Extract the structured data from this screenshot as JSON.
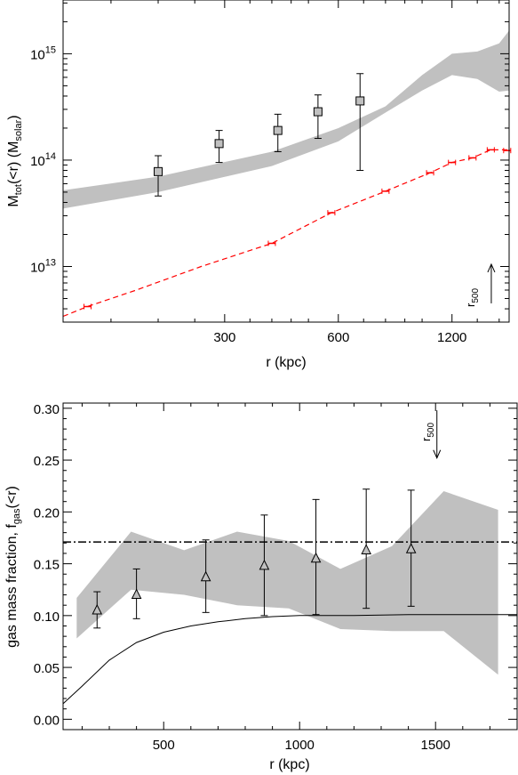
{
  "chart_data": [
    {
      "type": "scatter",
      "title": "",
      "xlabel": "r (kpc)",
      "ylabel_main": "M",
      "ylabel_sub": "tot",
      "ylabel_rest": "(<r) (M",
      "ylabel_sub2": "solar",
      "ylabel_close": ")",
      "xscale": "log",
      "yscale": "log",
      "xlim": [
        112,
        1700
      ],
      "ylim": [
        3000000000000.0,
        3200000000000000.0
      ],
      "xticks": [
        {
          "value": 300,
          "label": "300"
        },
        {
          "value": 600,
          "label": "600"
        },
        {
          "value": 1200,
          "label": "1200"
        }
      ],
      "yticks": [
        {
          "value": 10000000000000.0,
          "base": "10",
          "exp": "13"
        },
        {
          "value": 100000000000000.0,
          "base": "10",
          "exp": "14"
        },
        {
          "value": 1000000000000000.0,
          "base": "10",
          "exp": "15"
        }
      ],
      "band_color": "#c0c0c0",
      "band": {
        "x": [
          112,
          200,
          400,
          600,
          800,
          1000,
          1200,
          1400,
          1600,
          1700
        ],
        "upper": [
          52000000000000.0,
          70000000000000.0,
          120000000000000.0,
          200000000000000.0,
          320000000000000.0,
          630000000000000.0,
          1000000000000000.0,
          1050000000000000.0,
          1250000000000000.0,
          1650000000000000.0
        ],
        "lower": [
          35000000000000.0,
          50000000000000.0,
          88000000000000.0,
          150000000000000.0,
          280000000000000.0,
          450000000000000.0,
          630000000000000.0,
          580000000000000.0,
          440000000000000.0,
          450000000000000.0
        ]
      },
      "data_points": {
        "marker": "square",
        "x": [
          200,
          290,
          415,
          530,
          685
        ],
        "y": [
          78000000000000.0,
          143000000000000.0,
          190000000000000.0,
          285000000000000.0,
          360000000000000.0
        ],
        "ylow": [
          46000000000000.0,
          95000000000000.0,
          120000000000000.0,
          160000000000000.0,
          80000000000000.0
        ],
        "yhigh": [
          110000000000000.0,
          190000000000000.0,
          270000000000000.0,
          410000000000000.0,
          650000000000000.0
        ]
      },
      "gas_mass": {
        "color": "#ff0000",
        "style": "dashed",
        "x": [
          112,
          130,
          175,
          260,
          400,
          575,
          800,
          1050,
          1200,
          1360,
          1520,
          1700
        ],
        "y": [
          3400000000000.0,
          4200000000000.0,
          6000000000000.0,
          10000000000000.0,
          16500000000000.0,
          32000000000000.0,
          51000000000000.0,
          76000000000000.0,
          95000000000000.0,
          105000000000000.0,
          125000000000000.0,
          125000000000000.0
        ],
        "marker_x": [
          130,
          400,
          575,
          800,
          1050,
          1200,
          1360,
          1520,
          1680
        ],
        "marker_y": [
          4200000000000.0,
          16500000000000.0,
          32000000000000.0,
          51000000000000.0,
          76000000000000.0,
          95000000000000.0,
          105000000000000.0,
          125000000000000.0,
          123000000000000.0
        ]
      },
      "r500": {
        "label_main": "r",
        "label_sub": "500",
        "x": 1525,
        "y_tail": 4500000000000.0,
        "y_head": 10500000000000.0
      }
    },
    {
      "type": "scatter",
      "title": "",
      "xlabel": "r (kpc)",
      "ylabel_main": "gas mass fraction, f",
      "ylabel_sub": "gas",
      "ylabel_rest": "(<r)",
      "xlim": [
        130,
        1800
      ],
      "ylim": [
        -0.01,
        0.305
      ],
      "xticks": [
        {
          "value": 500,
          "label": "500"
        },
        {
          "value": 1000,
          "label": "1000"
        },
        {
          "value": 1500,
          "label": "1500"
        }
      ],
      "yticks": [
        {
          "value": 0.0,
          "label": "0.00"
        },
        {
          "value": 0.05,
          "label": "0.05"
        },
        {
          "value": 0.1,
          "label": "0.10"
        },
        {
          "value": 0.15,
          "label": "0.15"
        },
        {
          "value": 0.2,
          "label": "0.20"
        },
        {
          "value": 0.25,
          "label": "0.25"
        },
        {
          "value": 0.3,
          "label": "0.30"
        }
      ],
      "band_color": "#c0c0c0",
      "band": {
        "x": [
          180,
          380,
          575,
          770,
          960,
          1150,
          1340,
          1530,
          1730
        ],
        "upper": [
          0.117,
          0.181,
          0.163,
          0.181,
          0.172,
          0.145,
          0.167,
          0.22,
          0.202
        ],
        "lower": [
          0.078,
          0.125,
          0.12,
          0.11,
          0.107,
          0.087,
          0.085,
          0.085,
          0.043
        ]
      },
      "data_points": {
        "marker": "triangle",
        "x": [
          255,
          400,
          655,
          870,
          1060,
          1245,
          1410
        ],
        "y": [
          0.105,
          0.12,
          0.137,
          0.148,
          0.155,
          0.163,
          0.164
        ],
        "ylow": [
          0.088,
          0.097,
          0.103,
          0.1,
          0.101,
          0.107,
          0.109
        ],
        "yhigh": [
          0.123,
          0.145,
          0.173,
          0.197,
          0.212,
          0.222,
          0.221
        ]
      },
      "cosmic_fraction": {
        "y": 0.171,
        "style": "dash-dot"
      },
      "model_curve": {
        "x": [
          130,
          200,
          300,
          400,
          500,
          600,
          700,
          800,
          900,
          1000,
          1200,
          1400,
          1600,
          1800
        ],
        "y": [
          0.015,
          0.032,
          0.057,
          0.074,
          0.084,
          0.09,
          0.094,
          0.097,
          0.099,
          0.1,
          0.1,
          0.101,
          0.101,
          0.101
        ]
      },
      "r500": {
        "label_main": "r",
        "label_sub": "500",
        "x": 1505,
        "y_tail": 0.298,
        "y_head": 0.252
      }
    }
  ]
}
